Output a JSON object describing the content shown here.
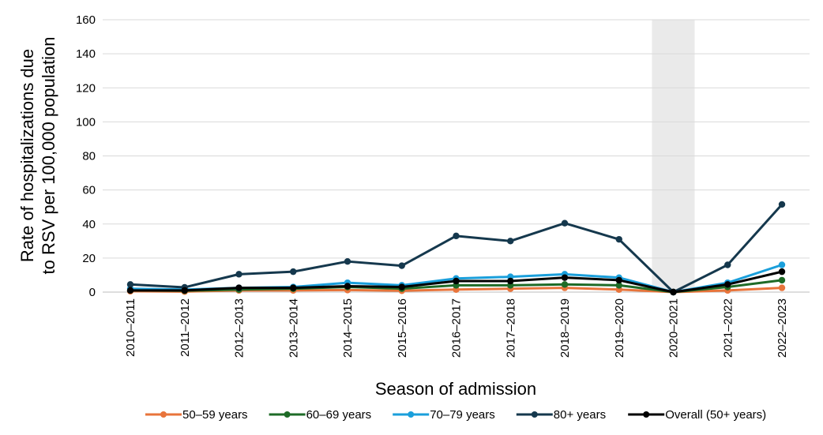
{
  "chart_data": {
    "type": "line",
    "title": "",
    "xlabel": "Season of admission",
    "ylabel_lines": [
      "Rate of hospitalizations due",
      "to RSV per 100,000 population"
    ],
    "ylim": [
      0,
      160
    ],
    "yticks": [
      0,
      20,
      40,
      60,
      80,
      100,
      120,
      140,
      160
    ],
    "grid": true,
    "legend_position": "bottom-center",
    "categories": [
      "2010–2011",
      "2011–2012",
      "2012–2013",
      "2013–2014",
      "2014–2015",
      "2015–2016",
      "2016–2017",
      "2017–2018",
      "2018–2019",
      "2019–2020",
      "2020–2021",
      "2021–2022",
      "2022–2023"
    ],
    "highlight_category": "2020–2021",
    "series": [
      {
        "name": "50–59 years",
        "color": "#E8743B",
        "values": [
          0.5,
          0.3,
          1.0,
          1.0,
          1.2,
          0.8,
          1.5,
          2.0,
          2.5,
          1.5,
          0,
          1.0,
          2.5
        ]
      },
      {
        "name": "60–69 years",
        "color": "#1E6B27",
        "values": [
          1.0,
          0.8,
          1.5,
          2.0,
          3.0,
          2.0,
          4.0,
          4.0,
          4.5,
          4.0,
          0,
          3.0,
          7.0
        ]
      },
      {
        "name": "70–79 years",
        "color": "#1A9FDB",
        "values": [
          2.0,
          1.5,
          2.5,
          3.0,
          5.5,
          4.0,
          8.0,
          9.0,
          10.5,
          8.5,
          0,
          5.5,
          16.0
        ]
      },
      {
        "name": "80+ years",
        "color": "#15384D",
        "values": [
          4.5,
          2.8,
          10.5,
          12.0,
          18.0,
          15.5,
          33.0,
          30.0,
          40.5,
          31.0,
          0,
          16.0,
          51.5
        ]
      },
      {
        "name": "Overall (50+ years)",
        "color": "#000000",
        "values": [
          1.0,
          1.0,
          2.5,
          2.5,
          3.5,
          3.0,
          6.5,
          6.5,
          8.5,
          7.0,
          0,
          4.5,
          12.0
        ]
      }
    ]
  }
}
